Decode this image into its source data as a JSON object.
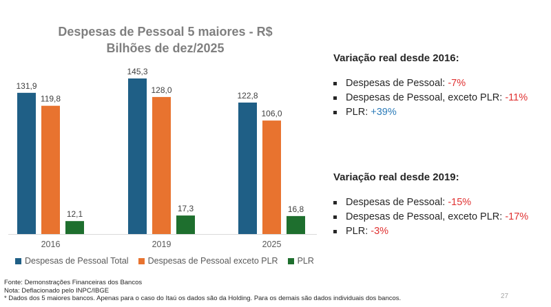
{
  "chart_data": {
    "type": "bar",
    "title": "Despesas de Pessoal 5 maiores - R$",
    "subtitle": "Bilhões de dez/2025",
    "categories": [
      "2016",
      "2019",
      "2025"
    ],
    "series": [
      {
        "name": "Despesas de Pessoal Total",
        "color": "#1f5f86",
        "values": [
          131.9,
          145.3,
          122.8
        ],
        "labels": [
          "131,9",
          "145,3",
          "122,8"
        ]
      },
      {
        "name": "Despesas de Pessoal exceto PLR",
        "color": "#e8732f",
        "values": [
          119.8,
          128.0,
          106.0
        ],
        "labels": [
          "119,8",
          "128,0",
          "106,0"
        ]
      },
      {
        "name": "PLR",
        "color": "#1e6f2e",
        "values": [
          12.1,
          17.3,
          16.8
        ],
        "labels": [
          "12,1",
          "17,3",
          "16,8"
        ]
      }
    ],
    "ylim": [
      0,
      145.3
    ],
    "grid": false,
    "legend": "bottom"
  },
  "panels": [
    {
      "heading": "Variação real desde 2016:",
      "items": [
        {
          "label": "Despesas de Pessoal: ",
          "value": "-7%",
          "tone": "neg"
        },
        {
          "label": "Despesas de Pessoal, exceto PLR: ",
          "value": "-11%",
          "tone": "neg"
        },
        {
          "label": "PLR: ",
          "value": "+39%",
          "tone": "pos"
        }
      ]
    },
    {
      "heading": "Variação real desde 2019:",
      "items": [
        {
          "label": "Despesas de Pessoal: ",
          "value": "-15%",
          "tone": "neg"
        },
        {
          "label": "Despesas de Pessoal, exceto PLR: ",
          "value": "-17%",
          "tone": "neg"
        },
        {
          "label": "PLR: ",
          "value": "-3%",
          "tone": "neg"
        }
      ]
    }
  ],
  "footnotes": {
    "source": "Fonte: Demonstrações Financeiras dos Bancos",
    "note": "Nota: Deflacionado pelo INPC/IBGE",
    "detail": "* Dados dos 5 maiores bancos. Apenas para o caso do Itaú os dados são da Holding. Para os demais são dados individuais dos bancos."
  },
  "page_number": "27"
}
